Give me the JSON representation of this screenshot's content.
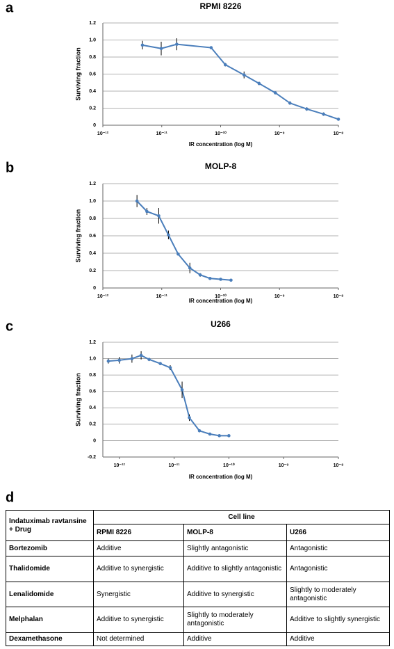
{
  "chart_data": [
    {
      "type": "line",
      "label": "a",
      "title": "RPMI 8226",
      "ylabel": "Surviving fraction",
      "xlabel": "IR concentration (log M)",
      "xscale": "log",
      "grid": true,
      "xlim": [
        1e-12,
        1e-08
      ],
      "xticks": [
        {
          "value": 1e-12,
          "label": "10⁻¹²"
        },
        {
          "value": 1e-11,
          "label": "10⁻¹¹"
        },
        {
          "value": 1e-10,
          "label": "10⁻¹⁰"
        },
        {
          "value": 1e-09,
          "label": "10⁻⁹"
        },
        {
          "value": 1e-08,
          "label": "10⁻⁸"
        }
      ],
      "ylim": [
        0,
        1.2
      ],
      "yticks": [
        0,
        0.2,
        0.4,
        0.6,
        0.8,
        {
          "value": 1,
          "label": "1.0"
        },
        1.2
      ],
      "x": [
        4.7e-12,
        9.8e-12,
        1.8e-11,
        6.9e-11,
        1.2e-10,
        2.5e-10,
        4.5e-10,
        8.5e-10,
        1.5e-09,
        2.9e-09,
        5.6e-09,
        1e-08
      ],
      "series": [
        {
          "color": "#4a7ebb",
          "values": [
            0.94,
            0.9,
            0.95,
            0.91,
            0.71,
            0.59,
            0.49,
            0.38,
            0.26,
            0.19,
            0.13,
            0.07
          ],
          "errors": [
            0.05,
            0.08,
            0.07,
            0.01,
            0.02,
            0.04,
            0.02,
            0.01,
            0.02,
            0.02,
            0.02,
            0.01
          ]
        }
      ]
    },
    {
      "type": "line",
      "label": "b",
      "title": "MOLP-8",
      "ylabel": "Surviving fraction",
      "xlabel": "IR concentration (log M)",
      "xscale": "log",
      "grid": true,
      "xlim": [
        1e-12,
        1e-08
      ],
      "xticks": [
        {
          "value": 1e-12,
          "label": "10⁻¹²"
        },
        {
          "value": 1e-11,
          "label": "10⁻¹¹"
        },
        {
          "value": 1e-10,
          "label": "10⁻¹⁰"
        },
        {
          "value": 1e-09,
          "label": "10⁻⁹"
        },
        {
          "value": 1e-08,
          "label": "10⁻⁸"
        }
      ],
      "ylim": [
        0,
        1.2
      ],
      "yticks": [
        0,
        0.2,
        0.4,
        0.6,
        0.8,
        {
          "value": 1,
          "label": "1.0"
        },
        1.2
      ],
      "x": [
        3.8e-12,
        5.6e-12,
        8.9e-12,
        1.3e-11,
        1.9e-11,
        3e-11,
        4.5e-11,
        6.6e-11,
        1e-10,
        1.5e-10
      ],
      "series": [
        {
          "color": "#4a7ebb",
          "values": [
            1.0,
            0.88,
            0.83,
            0.61,
            0.39,
            0.23,
            0.15,
            0.11,
            0.1,
            0.09
          ],
          "errors": [
            0.07,
            0.04,
            0.09,
            0.05,
            0.01,
            0.06,
            0.02,
            0.01,
            0.01,
            0.01
          ]
        }
      ]
    },
    {
      "type": "line",
      "label": "c",
      "title": "U266",
      "ylabel": "Surviving fraction",
      "xlabel": "IR concentration (log M)",
      "xscale": "log",
      "grid": true,
      "xlim": [
        5e-13,
        1e-08
      ],
      "xticks": [
        {
          "value": 1e-12,
          "label": "10⁻¹²"
        },
        {
          "value": 1e-11,
          "label": "10⁻¹¹"
        },
        {
          "value": 1e-10,
          "label": "10⁻¹⁰"
        },
        {
          "value": 1e-09,
          "label": "10⁻⁹"
        },
        {
          "value": 1e-08,
          "label": "10⁻⁸"
        }
      ],
      "ylim": [
        -0.2,
        1.2
      ],
      "yticks": [
        -0.2,
        0,
        0.2,
        0.4,
        0.6,
        0.8,
        {
          "value": 1,
          "label": "1.0"
        },
        1.2
      ],
      "x": [
        6.3e-13,
        1e-12,
        1.7e-12,
        2.5e-12,
        3.5e-12,
        5.6e-12,
        8.5e-12,
        1.4e-11,
        1.9e-11,
        2.9e-11,
        4.5e-11,
        6.7e-11,
        1e-10
      ],
      "series": [
        {
          "color": "#4a7ebb",
          "values": [
            0.97,
            0.98,
            1.0,
            1.04,
            0.99,
            0.94,
            0.89,
            0.62,
            0.28,
            0.12,
            0.08,
            0.06,
            0.06
          ],
          "errors": [
            0.03,
            0.04,
            0.05,
            0.05,
            0.02,
            0.01,
            0.03,
            0.1,
            0.04,
            0.01,
            0.01,
            0.01,
            0.01
          ]
        }
      ]
    }
  ],
  "table": {
    "label": "d",
    "corner_header": "Indatuximab ravtansine + Drug",
    "group_header": "Cell line",
    "columns": [
      "RPMI 8226",
      "MOLP-8",
      "U266"
    ],
    "rows": [
      [
        "Bortezomib",
        "Additive",
        "Slightly antagonistic",
        "Antagonistic"
      ],
      [
        "Thalidomide",
        "Additive to synergistic",
        "Additive to slightly antagonistic",
        "Antagonistic"
      ],
      [
        "Lenalidomide",
        "Synergistic",
        "Additive to synergistic",
        "Slightly to moderately antagonistic"
      ],
      [
        "Melphalan",
        "Additive to synergistic",
        "Slightly to moderately antagonistic",
        "Additive to slightly synergistic"
      ],
      [
        "Dexamethasone",
        "Not determined",
        "Additive",
        "Additive"
      ]
    ]
  }
}
